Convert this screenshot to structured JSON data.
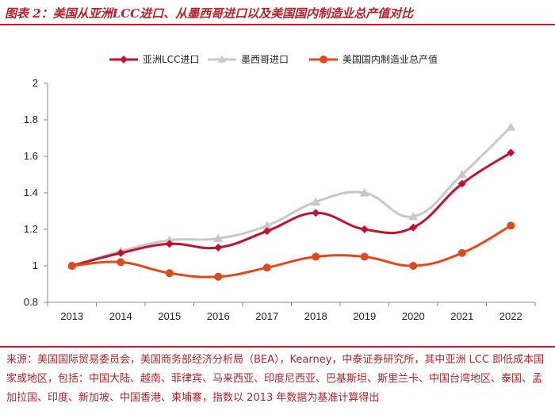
{
  "figure": {
    "title": "图表 2：美国从亚洲LCC进口、从墨西哥进口以及美国国内制造业总产值对比",
    "source": "来源：美国国际贸易委员会，美国商务部经济分析局（BEA），Kearney，中泰证券研究所，其中亚洲 LCC 即低成本国家或地区，包括：中国大陆、越南、菲律宾、马来西亚、印度尼西亚、巴基斯坦、斯里兰卡、中国台湾地区、泰国、孟加拉国、印度、新加坡、中国香港、柬埔寨，指数以 2013 年数据为基准计算得出"
  },
  "chart_data": {
    "type": "line",
    "categories": [
      "2013",
      "2014",
      "2015",
      "2016",
      "2017",
      "2018",
      "2019",
      "2020",
      "2021",
      "2022"
    ],
    "ylim": [
      0.8,
      2
    ],
    "yticks": [
      "0.8",
      "1",
      "1.2",
      "1.4",
      "1.6",
      "1.8",
      "2"
    ],
    "grid": false,
    "legend_position": "top",
    "series": [
      {
        "name": "亚洲LCC进口",
        "color": "#c0122f",
        "marker": "diamond",
        "values": [
          1.0,
          1.07,
          1.12,
          1.1,
          1.19,
          1.29,
          1.2,
          1.21,
          1.45,
          1.62
        ]
      },
      {
        "name": "墨西哥进口",
        "color": "#c8c8c8",
        "marker": "triangle",
        "values": [
          1.0,
          1.08,
          1.14,
          1.15,
          1.22,
          1.35,
          1.4,
          1.27,
          1.5,
          1.76
        ]
      },
      {
        "name": "美国国内制造业总产值",
        "color": "#e04a1a",
        "marker": "circle",
        "values": [
          1.0,
          1.02,
          0.96,
          0.94,
          0.99,
          1.05,
          1.05,
          1.0,
          1.07,
          1.22
        ]
      }
    ]
  }
}
